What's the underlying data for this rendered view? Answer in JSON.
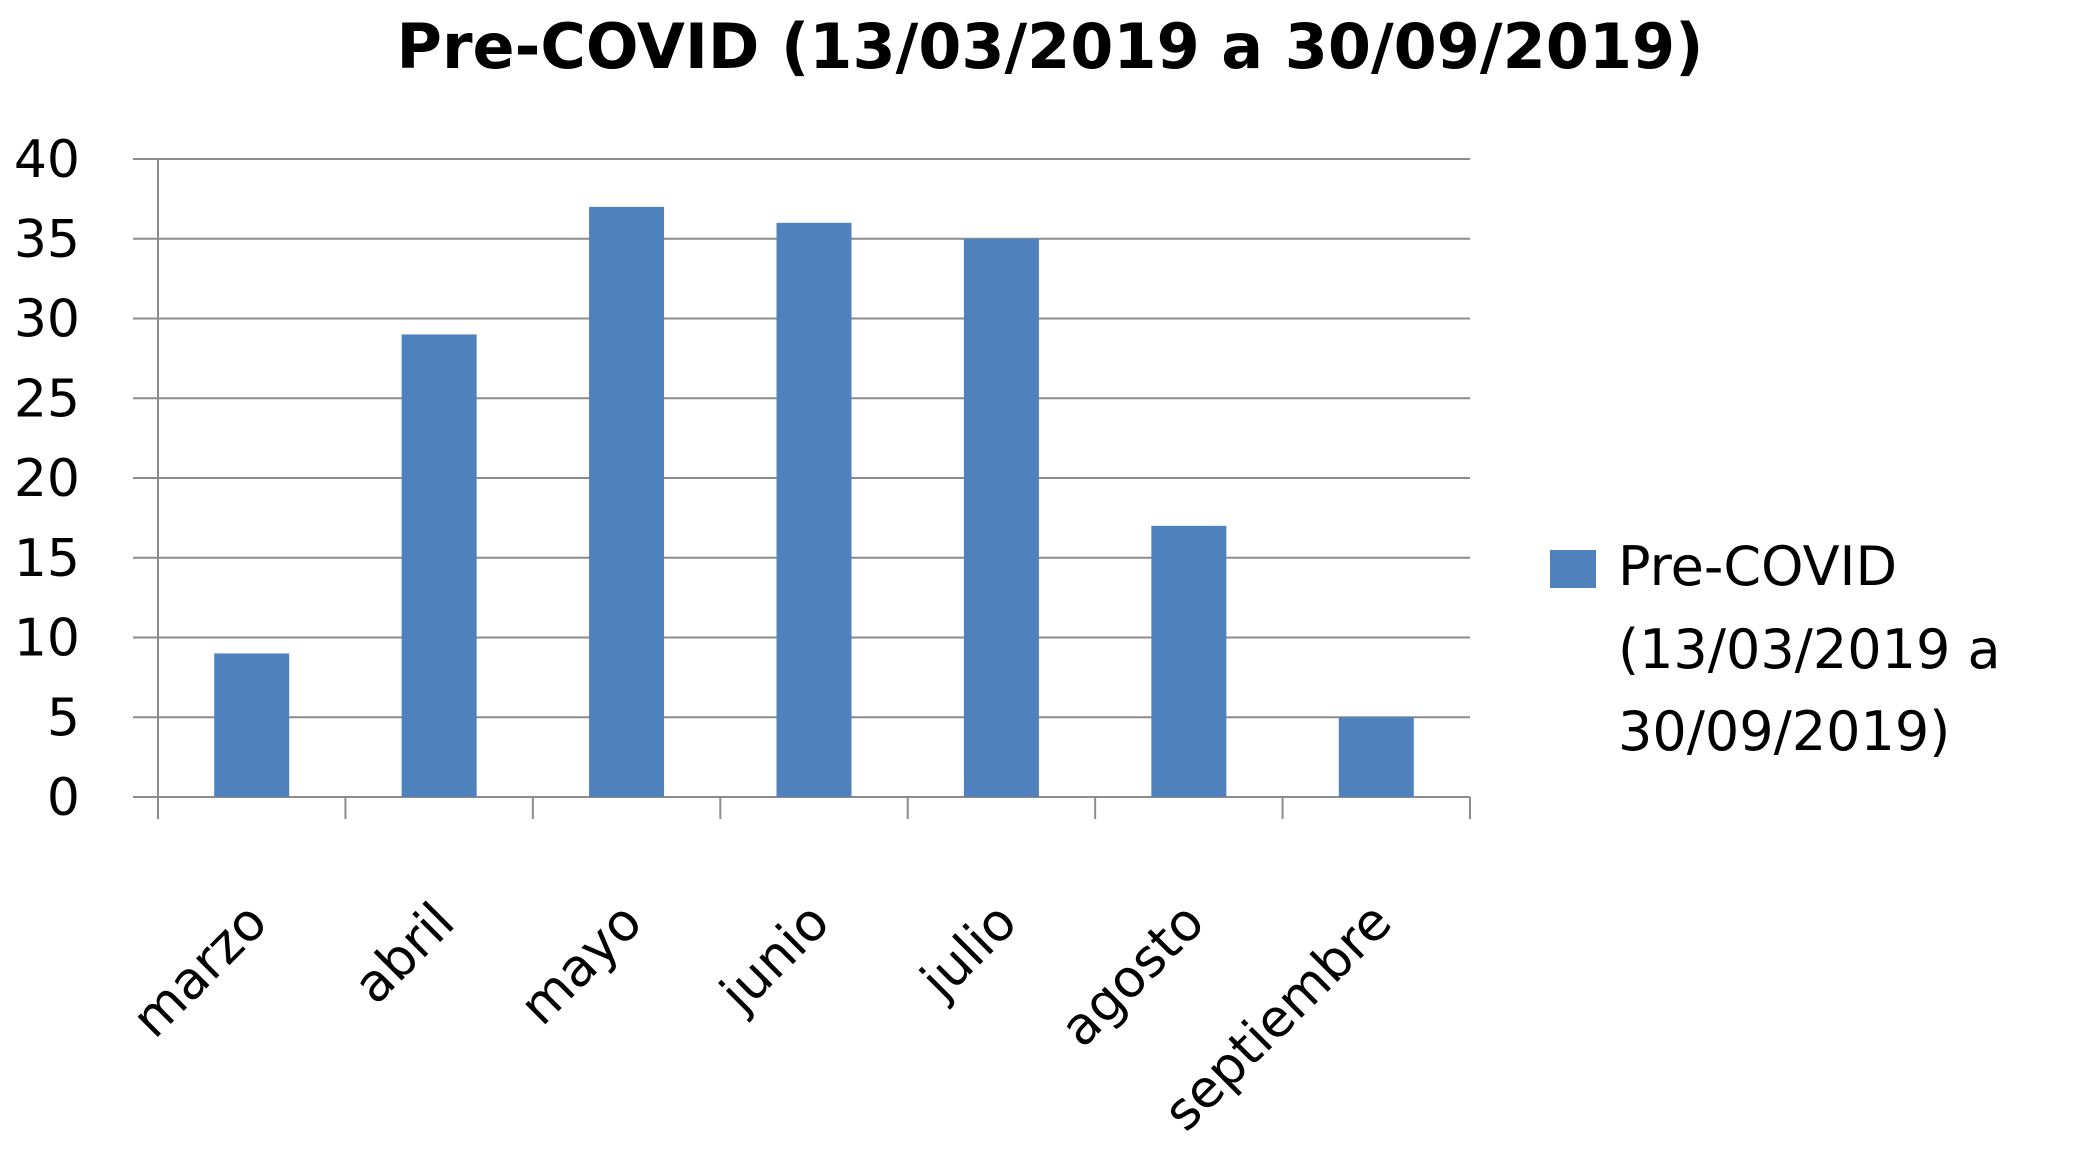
{
  "chart_data": {
    "type": "bar",
    "title": "Pre-COVID (13/03/2019 a 30/09/2019)",
    "xlabel": "",
    "ylabel": "",
    "categories": [
      "marzo",
      "abril",
      "mayo",
      "junio",
      "julio",
      "agosto",
      "septiembre"
    ],
    "series": [
      {
        "name": "Pre-COVID (13/03/2019 a 30/09/2019)",
        "values": [
          9,
          29,
          37,
          36,
          35,
          17,
          5
        ],
        "color": "#4f81bd"
      }
    ],
    "legend_lines": [
      "Pre-COVID",
      "(13/03/2019 a",
      "30/09/2019)"
    ],
    "ylim": [
      0,
      40
    ],
    "yticks": [
      0,
      5,
      10,
      15,
      20,
      25,
      30,
      35,
      40
    ],
    "grid": true,
    "legend_position": "right"
  }
}
